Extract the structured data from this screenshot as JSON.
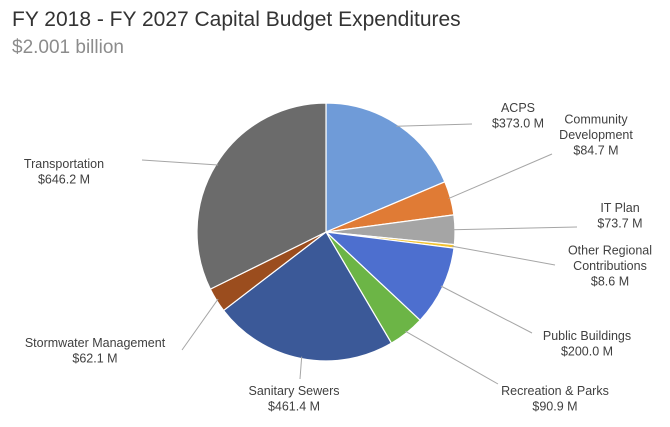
{
  "chart_data": {
    "type": "pie",
    "title": "FY 2018 - FY 2027 Capital Budget Expenditures",
    "subtitle": "$2.001 billion",
    "slices": [
      {
        "name": "ACPS",
        "label_lines": [
          "ACPS"
        ],
        "value_label": "$373.0 M",
        "value": 373.0,
        "color": "#6f9bd8"
      },
      {
        "name": "Community Development",
        "label_lines": [
          "Community",
          "Development"
        ],
        "value_label": "$84.7 M",
        "value": 84.7,
        "color": "#e07b35"
      },
      {
        "name": "IT Plan",
        "label_lines": [
          "IT Plan"
        ],
        "value_label": "$73.7 M",
        "value": 73.7,
        "color": "#a5a5a5"
      },
      {
        "name": "Other Regional Contributions",
        "label_lines": [
          "Other Regional",
          "Contributions"
        ],
        "value_label": "$8.6 M",
        "value": 8.6,
        "color": "#f2c230"
      },
      {
        "name": "Public Buildings",
        "label_lines": [
          "Public Buildings"
        ],
        "value_label": "$200.0 M",
        "value": 200.0,
        "color": "#4d6fcf"
      },
      {
        "name": "Recreation & Parks",
        "label_lines": [
          "Recreation & Parks"
        ],
        "value_label": "$90.9 M",
        "value": 90.9,
        "color": "#6cb546"
      },
      {
        "name": "Sanitary Sewers",
        "label_lines": [
          "Sanitary Sewers"
        ],
        "value_label": "$461.4 M",
        "value": 461.4,
        "color": "#3b5998"
      },
      {
        "name": "Stormwater Management",
        "label_lines": [
          "Stormwater Management"
        ],
        "value_label": "$62.1 M",
        "value": 62.1,
        "color": "#9b4d1e"
      },
      {
        "name": "Transportation",
        "label_lines": [
          "Transportation"
        ],
        "value_label": "$646.2 M",
        "value": 646.2,
        "color": "#6b6b6b"
      }
    ]
  }
}
